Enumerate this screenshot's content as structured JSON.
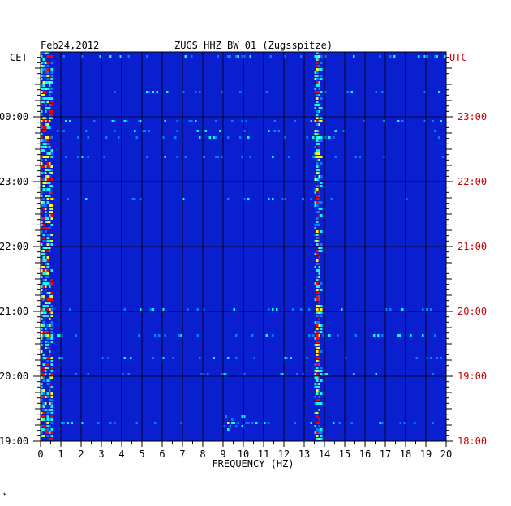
{
  "header": {
    "date": "Feb24,2012",
    "station": "ZUGS HHZ BW 01 (Zugsspitze)"
  },
  "footer_mark": "*",
  "chart_data": {
    "type": "heatmap",
    "title": "ZUGS HHZ BW 01 (Zugsspitze)",
    "date": "Feb24,2012",
    "xlabel": "FREQUENCY (HZ)",
    "xlim": [
      0,
      20
    ],
    "x_ticks": [
      "0",
      "1",
      "2",
      "3",
      "4",
      "5",
      "6",
      "7",
      "8",
      "9",
      "10",
      "11",
      "12",
      "13",
      "14",
      "15",
      "16",
      "17",
      "18",
      "19",
      "20"
    ],
    "y_left_label": "CET",
    "y_right_label": "UTC",
    "y_left_ticks": [
      "00:00",
      "23:00",
      "22:00",
      "21:00",
      "20:00",
      "19:00"
    ],
    "y_right_ticks": [
      "23:00",
      "22:00",
      "21:00",
      "20:00",
      "19:00",
      "18:00"
    ],
    "colormap": [
      "#00008b",
      "#0000ff",
      "#0080ff",
      "#00ffff",
      "#ffff00",
      "#ff0000"
    ],
    "background_color": "#0a1fd0",
    "features": [
      {
        "name": "low-frequency noise band",
        "freq_hz": [
          0,
          0.6
        ],
        "intensity": "high"
      },
      {
        "name": "persistent spectral line",
        "freq_hz": 13.7,
        "intensity": "high"
      },
      {
        "name": "transient",
        "freq_hz": [
          9,
          10.3
        ],
        "time_utc": "18:15",
        "intensity": "medium"
      }
    ],
    "grid": true
  }
}
